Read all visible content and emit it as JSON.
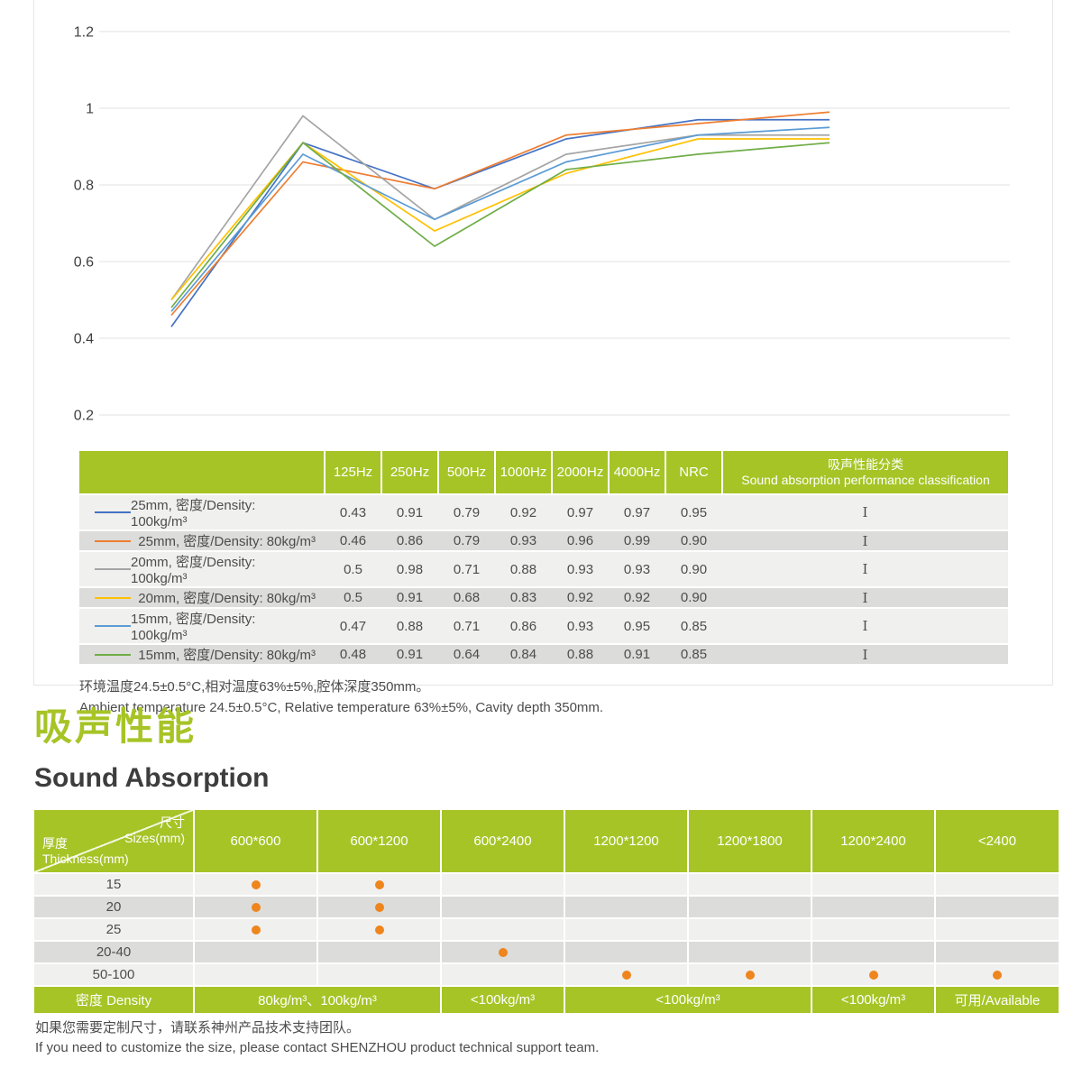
{
  "colors": {
    "accent_green": "#a6c426",
    "dot_orange": "#ee851d",
    "grid_gray": "#e2e2e2"
  },
  "chart_data": {
    "type": "line",
    "categories": [
      "125Hz",
      "250Hz",
      "500Hz",
      "1000Hz",
      "2000Hz",
      "4000Hz"
    ],
    "series": [
      {
        "name": "25mm, 密度/Density: 100kg/m³",
        "color": "#4472c4",
        "values": [
          0.43,
          0.91,
          0.79,
          0.92,
          0.97,
          0.97
        ]
      },
      {
        "name": "25mm, 密度/Density: 80kg/m³",
        "color": "#ed7d31",
        "values": [
          0.46,
          0.86,
          0.79,
          0.93,
          0.96,
          0.99
        ]
      },
      {
        "name": "20mm, 密度/Density: 100kg/m³",
        "color": "#a5a5a5",
        "values": [
          0.5,
          0.98,
          0.71,
          0.88,
          0.93,
          0.93
        ]
      },
      {
        "name": "20mm, 密度/Density: 80kg/m³",
        "color": "#ffc000",
        "values": [
          0.5,
          0.91,
          0.68,
          0.83,
          0.92,
          0.92
        ]
      },
      {
        "name": "15mm, 密度/Density: 100kg/m³",
        "color": "#5b9bd5",
        "values": [
          0.47,
          0.88,
          0.71,
          0.86,
          0.93,
          0.95
        ]
      },
      {
        "name": "15mm, 密度/Density: 80kg/m³",
        "color": "#70ad47",
        "values": [
          0.48,
          0.91,
          0.64,
          0.84,
          0.88,
          0.91
        ]
      }
    ],
    "ylim": [
      0.2,
      1.2
    ],
    "yticks": [
      1.2,
      1,
      0.8,
      0.6,
      0.4,
      0.2
    ],
    "ytick_labels": [
      "1.2",
      "1",
      "0.8",
      "0.6",
      "0.4",
      "0.2"
    ],
    "grid": true,
    "x_axis_labels_visible": false,
    "legend_position": "in-table-rows"
  },
  "absorption_table": {
    "freq_headers": [
      "125Hz",
      "250Hz",
      "500Hz",
      "1000Hz",
      "2000Hz",
      "4000Hz",
      "NRC"
    ],
    "classification_header_zh": "吸声性能分类",
    "classification_header_en": "Sound absorption performance classification",
    "rows": [
      {
        "label": "25mm, 密度/Density: 100kg/m³",
        "color": "#4472c4",
        "values": [
          "0.43",
          "0.91",
          "0.79",
          "0.92",
          "0.97",
          "0.97",
          "0.95"
        ],
        "classification": "I"
      },
      {
        "label": "25mm, 密度/Density: 80kg/m³",
        "color": "#ed7d31",
        "values": [
          "0.46",
          "0.86",
          "0.79",
          "0.93",
          "0.96",
          "0.99",
          "0.90"
        ],
        "classification": "I"
      },
      {
        "label": "20mm, 密度/Density: 100kg/m³",
        "color": "#a5a5a5",
        "values": [
          "0.5",
          "0.98",
          "0.71",
          "0.88",
          "0.93",
          "0.93",
          "0.90"
        ],
        "classification": "I"
      },
      {
        "label": "20mm, 密度/Density: 80kg/m³",
        "color": "#ffc000",
        "values": [
          "0.5",
          "0.91",
          "0.68",
          "0.83",
          "0.92",
          "0.92",
          "0.90"
        ],
        "classification": "I"
      },
      {
        "label": "15mm, 密度/Density: 100kg/m³",
        "color": "#5b9bd5",
        "values": [
          "0.47",
          "0.88",
          "0.71",
          "0.86",
          "0.93",
          "0.95",
          "0.85"
        ],
        "classification": "I"
      },
      {
        "label": "15mm, 密度/Density: 80kg/m³",
        "color": "#70ad47",
        "values": [
          "0.48",
          "0.91",
          "0.64",
          "0.84",
          "0.88",
          "0.91",
          "0.85"
        ],
        "classification": "I"
      }
    ]
  },
  "notes": {
    "zh": "环境温度24.5±0.5°C,相对温度63%±5%,腔体深度350mm。",
    "en": "Ambient temperature 24.5±0.5°C, Relative temperature 63%±5%, Cavity depth 350mm."
  },
  "section": {
    "title_zh": "吸声性能",
    "title_en": "Sound Absorption"
  },
  "sizes_table": {
    "corner": {
      "top_zh": "尺寸",
      "top_en": "Sizes(mm)",
      "bottom_zh": "厚度",
      "bottom_en": "Thickness(mm)"
    },
    "size_headers": [
      "600*600",
      "600*1200",
      "600*2400",
      "1200*1200",
      "1200*1800",
      "1200*2400",
      "<2400"
    ],
    "rows": [
      {
        "thickness": "15",
        "dots": [
          0,
          1
        ]
      },
      {
        "thickness": "20",
        "dots": [
          0,
          1
        ]
      },
      {
        "thickness": "25",
        "dots": [
          0,
          1
        ]
      },
      {
        "thickness": "20-40",
        "dots": [
          2
        ]
      },
      {
        "thickness": "50-100",
        "dots": [
          3,
          4,
          5,
          6
        ]
      }
    ],
    "density_row": [
      {
        "text": "密度 Density",
        "span": 1
      },
      {
        "text": "80kg/m³、100kg/m³",
        "span": 2
      },
      {
        "text": "<100kg/m³",
        "span": 1
      },
      {
        "text": "<100kg/m³",
        "span": 2
      },
      {
        "text": "<100kg/m³",
        "span": 1
      },
      {
        "text": "可用/Available",
        "span": 1
      }
    ]
  },
  "footer_notes": {
    "zh": "如果您需要定制尺寸，请联系神州产品技术支持团队。",
    "en": "If you need to customize the size, please contact SHENZHOU product technical support team."
  }
}
